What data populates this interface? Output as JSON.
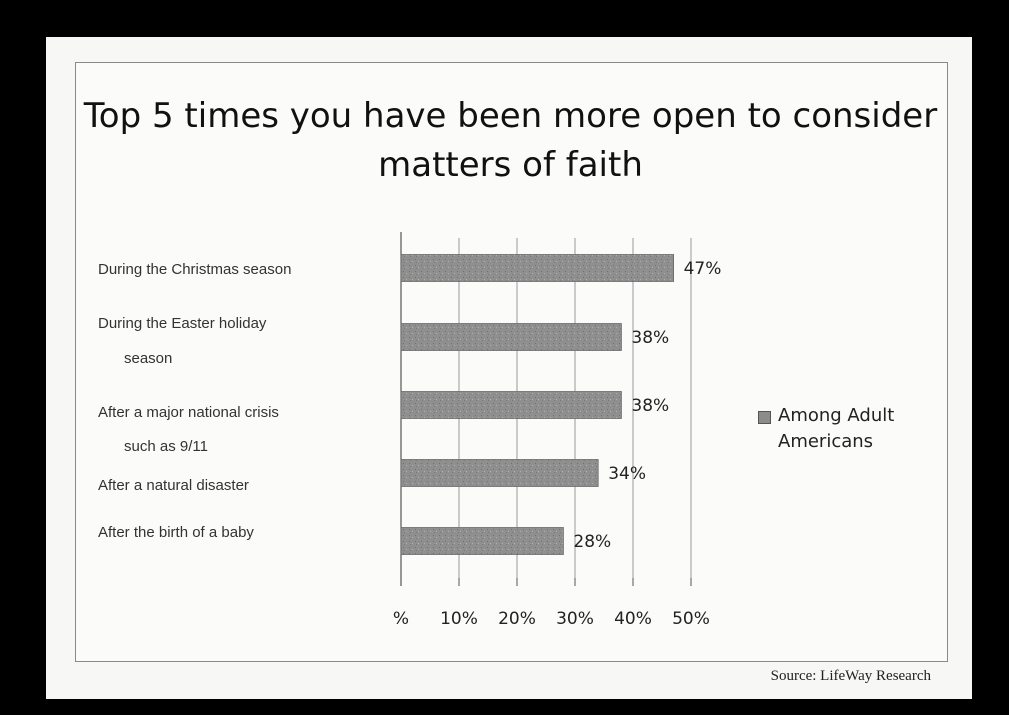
{
  "chart_data": {
    "type": "bar",
    "orientation": "horizontal",
    "title": "Top 5 times you have been more open to consider matters of faith",
    "categories": [
      "During the Christmas season",
      "During the Easter holiday season",
      "After a major national crisis such as 9/11",
      "After a natural disaster",
      "After the birth of a baby"
    ],
    "category_lines": [
      [
        "During the Christmas season"
      ],
      [
        "During the Easter holiday",
        "season"
      ],
      [
        "After a major national crisis",
        "such as 9/11"
      ],
      [
        "After a natural disaster"
      ],
      [
        "After the birth of a baby"
      ]
    ],
    "series": [
      {
        "name": "Among Adult Americans",
        "values": [
          47,
          38,
          38,
          34,
          28
        ]
      }
    ],
    "data_labels": [
      "47%",
      "38%",
      "38%",
      "34%",
      "28%"
    ],
    "xticks": [
      "%",
      "10%",
      "20%",
      "30%",
      "40%",
      "50%"
    ],
    "xlim": [
      0,
      50
    ],
    "grid": true,
    "legend": "right",
    "colors": {
      "bar": "#8f8f8f",
      "grid": "#9a9a9a",
      "axis": "#555555"
    }
  },
  "source": "Source: LifeWay Research"
}
